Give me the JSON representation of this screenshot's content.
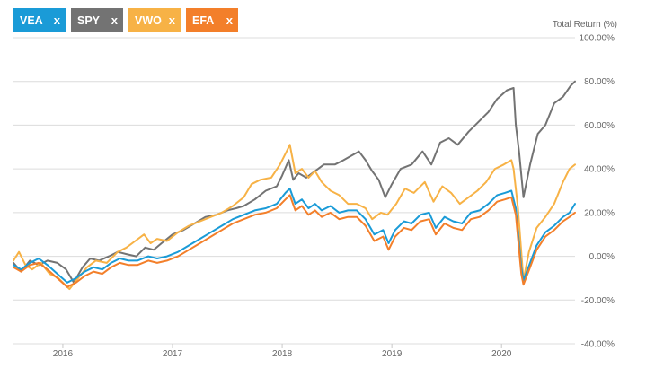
{
  "tickers": [
    {
      "symbol": "VEA",
      "remove_label": "x",
      "color": "#1a9bd7"
    },
    {
      "symbol": "SPY",
      "remove_label": "x",
      "color": "#737373"
    },
    {
      "symbol": "VWO",
      "remove_label": "x",
      "color": "#f7b246"
    },
    {
      "symbol": "EFA",
      "remove_label": "x",
      "color": "#f37f2a"
    }
  ],
  "chart_data": {
    "type": "line",
    "ylabel": "Total Return (%)",
    "ylim": [
      -40,
      100
    ],
    "y_ticks": [
      "100.00%",
      "80.00%",
      "60.00%",
      "40.00%",
      "20.00%",
      "0.00%",
      "-20.00%",
      "-40.00%"
    ],
    "y_tick_values": [
      100,
      80,
      60,
      40,
      20,
      0,
      -20,
      -40
    ],
    "x_range": [
      2015.55,
      2020.67
    ],
    "x_ticks": [
      "2016",
      "2017",
      "2018",
      "2019",
      "2020"
    ],
    "x_tick_values": [
      2016,
      2017,
      2018,
      2019,
      2020
    ],
    "grid": true,
    "series": [
      {
        "name": "SPY",
        "color": "#737373",
        "points": [
          [
            2015.55,
            -3
          ],
          [
            2015.62,
            -7
          ],
          [
            2015.7,
            -2
          ],
          [
            2015.78,
            -4
          ],
          [
            2015.86,
            -2
          ],
          [
            2015.95,
            -3
          ],
          [
            2016.03,
            -6
          ],
          [
            2016.1,
            -12
          ],
          [
            2016.18,
            -5
          ],
          [
            2016.25,
            -1
          ],
          [
            2016.33,
            -2
          ],
          [
            2016.42,
            0
          ],
          [
            2016.5,
            2
          ],
          [
            2016.58,
            1
          ],
          [
            2016.67,
            0
          ],
          [
            2016.75,
            4
          ],
          [
            2016.83,
            3
          ],
          [
            2016.9,
            6
          ],
          [
            2017.0,
            10
          ],
          [
            2017.1,
            12
          ],
          [
            2017.2,
            15
          ],
          [
            2017.3,
            18
          ],
          [
            2017.4,
            19
          ],
          [
            2017.5,
            21
          ],
          [
            2017.58,
            22
          ],
          [
            2017.65,
            23
          ],
          [
            2017.75,
            26
          ],
          [
            2017.85,
            30
          ],
          [
            2017.95,
            32
          ],
          [
            2018.0,
            37
          ],
          [
            2018.06,
            44
          ],
          [
            2018.1,
            35
          ],
          [
            2018.15,
            38
          ],
          [
            2018.22,
            36
          ],
          [
            2018.3,
            39
          ],
          [
            2018.38,
            42
          ],
          [
            2018.48,
            42
          ],
          [
            2018.56,
            44
          ],
          [
            2018.63,
            46
          ],
          [
            2018.7,
            48
          ],
          [
            2018.76,
            44
          ],
          [
            2018.82,
            39
          ],
          [
            2018.88,
            35
          ],
          [
            2018.94,
            27
          ],
          [
            2019.0,
            33
          ],
          [
            2019.08,
            40
          ],
          [
            2019.18,
            42
          ],
          [
            2019.28,
            48
          ],
          [
            2019.36,
            42
          ],
          [
            2019.44,
            52
          ],
          [
            2019.52,
            54
          ],
          [
            2019.6,
            51
          ],
          [
            2019.7,
            57
          ],
          [
            2019.8,
            62
          ],
          [
            2019.88,
            66
          ],
          [
            2019.96,
            72
          ],
          [
            2020.05,
            76
          ],
          [
            2020.11,
            77
          ],
          [
            2020.13,
            60
          ],
          [
            2020.16,
            48
          ],
          [
            2020.2,
            27
          ],
          [
            2020.26,
            42
          ],
          [
            2020.33,
            56
          ],
          [
            2020.4,
            60
          ],
          [
            2020.48,
            70
          ],
          [
            2020.56,
            73
          ],
          [
            2020.63,
            78
          ],
          [
            2020.67,
            80
          ]
        ]
      },
      {
        "name": "VWO",
        "color": "#f7b246",
        "points": [
          [
            2015.55,
            -2
          ],
          [
            2015.6,
            2
          ],
          [
            2015.66,
            -4
          ],
          [
            2015.72,
            -6
          ],
          [
            2015.8,
            -3
          ],
          [
            2015.88,
            -8
          ],
          [
            2015.96,
            -10
          ],
          [
            2016.06,
            -15
          ],
          [
            2016.14,
            -10
          ],
          [
            2016.22,
            -5
          ],
          [
            2016.3,
            -2
          ],
          [
            2016.4,
            -3
          ],
          [
            2016.5,
            2
          ],
          [
            2016.58,
            4
          ],
          [
            2016.66,
            7
          ],
          [
            2016.74,
            10
          ],
          [
            2016.8,
            6
          ],
          [
            2016.86,
            8
          ],
          [
            2016.95,
            7
          ],
          [
            2017.05,
            11
          ],
          [
            2017.15,
            14
          ],
          [
            2017.25,
            16
          ],
          [
            2017.35,
            18
          ],
          [
            2017.45,
            20
          ],
          [
            2017.55,
            23
          ],
          [
            2017.65,
            27
          ],
          [
            2017.72,
            33
          ],
          [
            2017.8,
            35
          ],
          [
            2017.9,
            36
          ],
          [
            2017.98,
            42
          ],
          [
            2018.04,
            48
          ],
          [
            2018.07,
            51
          ],
          [
            2018.12,
            38
          ],
          [
            2018.18,
            40
          ],
          [
            2018.24,
            36
          ],
          [
            2018.3,
            39
          ],
          [
            2018.36,
            34
          ],
          [
            2018.44,
            30
          ],
          [
            2018.52,
            28
          ],
          [
            2018.6,
            24
          ],
          [
            2018.68,
            24
          ],
          [
            2018.76,
            22
          ],
          [
            2018.82,
            17
          ],
          [
            2018.9,
            20
          ],
          [
            2018.96,
            19
          ],
          [
            2019.04,
            24
          ],
          [
            2019.12,
            31
          ],
          [
            2019.2,
            29
          ],
          [
            2019.3,
            34
          ],
          [
            2019.38,
            25
          ],
          [
            2019.46,
            32
          ],
          [
            2019.54,
            29
          ],
          [
            2019.62,
            24
          ],
          [
            2019.7,
            27
          ],
          [
            2019.78,
            30
          ],
          [
            2019.86,
            34
          ],
          [
            2019.94,
            40
          ],
          [
            2020.02,
            42
          ],
          [
            2020.09,
            44
          ],
          [
            2020.11,
            40
          ],
          [
            2020.15,
            22
          ],
          [
            2020.2,
            -11
          ],
          [
            2020.25,
            2
          ],
          [
            2020.32,
            13
          ],
          [
            2020.4,
            18
          ],
          [
            2020.48,
            24
          ],
          [
            2020.56,
            34
          ],
          [
            2020.62,
            40
          ],
          [
            2020.67,
            42
          ]
        ]
      },
      {
        "name": "VEA",
        "color": "#1a9bd7",
        "points": [
          [
            2015.55,
            -4
          ],
          [
            2015.62,
            -6
          ],
          [
            2015.7,
            -3
          ],
          [
            2015.78,
            -1
          ],
          [
            2015.86,
            -4
          ],
          [
            2015.95,
            -8
          ],
          [
            2016.04,
            -12
          ],
          [
            2016.12,
            -10
          ],
          [
            2016.2,
            -7
          ],
          [
            2016.28,
            -5
          ],
          [
            2016.36,
            -6
          ],
          [
            2016.44,
            -3
          ],
          [
            2016.52,
            -1
          ],
          [
            2016.6,
            -2
          ],
          [
            2016.68,
            -2
          ],
          [
            2016.78,
            0
          ],
          [
            2016.86,
            -1
          ],
          [
            2016.95,
            0
          ],
          [
            2017.05,
            2
          ],
          [
            2017.15,
            5
          ],
          [
            2017.25,
            8
          ],
          [
            2017.35,
            11
          ],
          [
            2017.45,
            14
          ],
          [
            2017.55,
            17
          ],
          [
            2017.65,
            19
          ],
          [
            2017.75,
            21
          ],
          [
            2017.85,
            22
          ],
          [
            2017.95,
            24
          ],
          [
            2018.03,
            29
          ],
          [
            2018.07,
            31
          ],
          [
            2018.12,
            24
          ],
          [
            2018.18,
            26
          ],
          [
            2018.24,
            22
          ],
          [
            2018.3,
            24
          ],
          [
            2018.36,
            21
          ],
          [
            2018.44,
            23
          ],
          [
            2018.52,
            20
          ],
          [
            2018.6,
            21
          ],
          [
            2018.68,
            21
          ],
          [
            2018.76,
            17
          ],
          [
            2018.84,
            10
          ],
          [
            2018.92,
            12
          ],
          [
            2018.97,
            6
          ],
          [
            2019.03,
            12
          ],
          [
            2019.11,
            16
          ],
          [
            2019.18,
            15
          ],
          [
            2019.26,
            19
          ],
          [
            2019.34,
            20
          ],
          [
            2019.4,
            13
          ],
          [
            2019.48,
            18
          ],
          [
            2019.56,
            16
          ],
          [
            2019.64,
            15
          ],
          [
            2019.72,
            20
          ],
          [
            2019.8,
            21
          ],
          [
            2019.88,
            24
          ],
          [
            2019.96,
            28
          ],
          [
            2020.03,
            29
          ],
          [
            2020.09,
            30
          ],
          [
            2020.13,
            22
          ],
          [
            2020.18,
            -5
          ],
          [
            2020.2,
            -11
          ],
          [
            2020.26,
            -3
          ],
          [
            2020.32,
            5
          ],
          [
            2020.4,
            11
          ],
          [
            2020.48,
            14
          ],
          [
            2020.56,
            18
          ],
          [
            2020.62,
            20
          ],
          [
            2020.67,
            24
          ]
        ]
      },
      {
        "name": "EFA",
        "color": "#f37f2a",
        "points": [
          [
            2015.55,
            -5
          ],
          [
            2015.62,
            -7
          ],
          [
            2015.7,
            -4
          ],
          [
            2015.78,
            -3
          ],
          [
            2015.86,
            -6
          ],
          [
            2015.95,
            -10
          ],
          [
            2016.04,
            -14
          ],
          [
            2016.12,
            -12
          ],
          [
            2016.2,
            -9
          ],
          [
            2016.28,
            -7
          ],
          [
            2016.36,
            -8
          ],
          [
            2016.44,
            -5
          ],
          [
            2016.52,
            -3
          ],
          [
            2016.6,
            -4
          ],
          [
            2016.68,
            -4
          ],
          [
            2016.78,
            -2
          ],
          [
            2016.86,
            -3
          ],
          [
            2016.95,
            -2
          ],
          [
            2017.05,
            0
          ],
          [
            2017.15,
            3
          ],
          [
            2017.25,
            6
          ],
          [
            2017.35,
            9
          ],
          [
            2017.45,
            12
          ],
          [
            2017.55,
            15
          ],
          [
            2017.65,
            17
          ],
          [
            2017.75,
            19
          ],
          [
            2017.85,
            20
          ],
          [
            2017.95,
            22
          ],
          [
            2018.03,
            26
          ],
          [
            2018.07,
            28
          ],
          [
            2018.12,
            21
          ],
          [
            2018.18,
            23
          ],
          [
            2018.24,
            19
          ],
          [
            2018.3,
            21
          ],
          [
            2018.36,
            18
          ],
          [
            2018.44,
            20
          ],
          [
            2018.52,
            17
          ],
          [
            2018.6,
            18
          ],
          [
            2018.68,
            18
          ],
          [
            2018.76,
            14
          ],
          [
            2018.84,
            7
          ],
          [
            2018.92,
            9
          ],
          [
            2018.97,
            3
          ],
          [
            2019.03,
            9
          ],
          [
            2019.11,
            13
          ],
          [
            2019.18,
            12
          ],
          [
            2019.26,
            16
          ],
          [
            2019.34,
            17
          ],
          [
            2019.4,
            10
          ],
          [
            2019.48,
            15
          ],
          [
            2019.56,
            13
          ],
          [
            2019.64,
            12
          ],
          [
            2019.72,
            17
          ],
          [
            2019.8,
            18
          ],
          [
            2019.88,
            21
          ],
          [
            2019.96,
            25
          ],
          [
            2020.03,
            26
          ],
          [
            2020.09,
            27
          ],
          [
            2020.13,
            19
          ],
          [
            2020.18,
            -8
          ],
          [
            2020.2,
            -13
          ],
          [
            2020.26,
            -5
          ],
          [
            2020.32,
            3
          ],
          [
            2020.4,
            9
          ],
          [
            2020.48,
            12
          ],
          [
            2020.56,
            16
          ],
          [
            2020.62,
            18
          ],
          [
            2020.67,
            20
          ]
        ]
      }
    ]
  }
}
